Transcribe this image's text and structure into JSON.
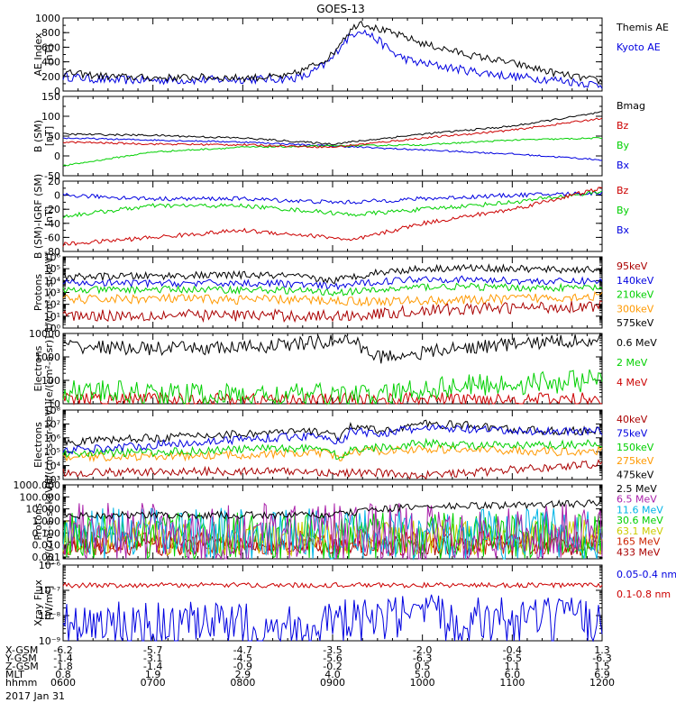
{
  "title": "GOES-13",
  "date_label": "2017 Jan 31",
  "colors": {
    "black": "#000000",
    "blue": "#0000e0",
    "green": "#00d000",
    "red": "#cc0000",
    "orange": "#ff9900",
    "cyan": "#00b4e6",
    "maroon": "#aa0000",
    "purple": "#aa22aa",
    "yellow": "#cccc00"
  },
  "footer": {
    "rows": [
      {
        "label": "X-GSM",
        "values": [
          "-6.2",
          "-5.7",
          "-4.7",
          "-3.5",
          "-2.0",
          "-0.4",
          "1.3"
        ]
      },
      {
        "label": "Y-GSM",
        "values": [
          "-1.4",
          "-3.1",
          "-4.5",
          "-5.6",
          "-6.3",
          "-6.5",
          "-6.3"
        ]
      },
      {
        "label": "Z-GSM",
        "values": [
          "-1.8",
          "-1.4",
          "-0.9",
          "-0.2",
          "0.5",
          "1.1",
          "1.5"
        ]
      },
      {
        "label": "MLT",
        "values": [
          "0.8",
          "1.9",
          "2.9",
          "4.0",
          "5.0",
          "6.0",
          "6.9"
        ]
      },
      {
        "label": "hhmm",
        "values": [
          "0600",
          "0700",
          "0800",
          "0900",
          "1000",
          "1100",
          "1200"
        ]
      }
    ]
  },
  "chart_data": [
    {
      "type": "line",
      "id": "ae",
      "ylabel": [
        "AE Index",
        "[nT]"
      ],
      "scale": "linear",
      "ylim": [
        0,
        1000
      ],
      "ticks": [
        0,
        200,
        400,
        600,
        800,
        1000
      ],
      "tick_labels": [
        "0",
        "200",
        "400",
        "600",
        "800",
        "1000"
      ],
      "minor": 100,
      "x_hours": [
        6,
        6.5,
        7,
        7.5,
        8,
        8.5,
        8.7,
        8.9,
        9.0,
        9.1,
        9.3,
        9.5,
        9.7,
        9.9,
        10,
        10.5,
        11,
        11.5,
        12
      ],
      "series": [
        {
          "name": "Kyoto AE",
          "color": "#0000e0",
          "noise": 0.06,
          "values": [
            200,
            150,
            150,
            150,
            160,
            170,
            200,
            350,
            450,
            650,
            850,
            700,
            500,
            400,
            380,
            280,
            200,
            150,
            80
          ]
        },
        {
          "name": "Themis AE",
          "color": "#000000",
          "noise": 0.05,
          "values": [
            250,
            200,
            180,
            190,
            180,
            200,
            300,
            420,
            500,
            700,
            950,
            850,
            780,
            700,
            650,
            500,
            380,
            240,
            130
          ]
        }
      ]
    },
    {
      "type": "line",
      "id": "b_sm",
      "ylabel": [
        "B (SM)",
        "[nT]"
      ],
      "scale": "linear",
      "ylim": [
        -50,
        150
      ],
      "ticks": [
        -50,
        0,
        50,
        100,
        150
      ],
      "tick_labels": [
        "-50",
        "0",
        "50",
        "100",
        "150"
      ],
      "minor": 25,
      "x_hours": [
        6,
        7,
        8,
        9,
        10,
        11,
        12
      ],
      "series": [
        {
          "name": "Bx",
          "color": "#0000e0",
          "noise": 0.01,
          "values": [
            45,
            40,
            35,
            25,
            15,
            5,
            -10
          ]
        },
        {
          "name": "By",
          "color": "#00d000",
          "noise": 0.01,
          "values": [
            -25,
            10,
            22,
            25,
            28,
            40,
            45
          ]
        },
        {
          "name": "Bz",
          "color": "#cc0000",
          "noise": 0.012,
          "values": [
            35,
            30,
            28,
            22,
            45,
            65,
            95
          ]
        },
        {
          "name": "Bmag",
          "color": "#000000",
          "noise": 0.012,
          "values": [
            55,
            52,
            45,
            30,
            55,
            75,
            110
          ]
        }
      ]
    },
    {
      "type": "line",
      "id": "b_igrf",
      "ylabel": [
        "B (SM)-IGRF (SM)",
        "[nT]"
      ],
      "scale": "linear",
      "ylim": [
        -80,
        20
      ],
      "ticks": [
        -80,
        -60,
        -40,
        -20,
        0,
        20
      ],
      "tick_labels": [
        "-80",
        "-60",
        "-40",
        "-20",
        "0",
        "20"
      ],
      "minor": 10,
      "x_hours": [
        6,
        7,
        8,
        9,
        9.2,
        10,
        11,
        12
      ],
      "series": [
        {
          "name": "Bx",
          "color": "#0000e0",
          "noise": 0.03,
          "values": [
            0,
            -5,
            -5,
            -10,
            -10,
            -5,
            0,
            3
          ]
        },
        {
          "name": "By",
          "color": "#00d000",
          "noise": 0.03,
          "values": [
            -30,
            -15,
            -15,
            -25,
            -28,
            -20,
            -10,
            5
          ]
        },
        {
          "name": "Bz",
          "color": "#cc0000",
          "noise": 0.03,
          "values": [
            -70,
            -60,
            -50,
            -60,
            -65,
            -40,
            -20,
            10
          ]
        }
      ]
    },
    {
      "type": "line",
      "id": "protons_mev",
      "ylabel": [
        "Protons",
        "1/(cm²-s-sr-keV)"
      ],
      "scale": "log",
      "ylim": [
        1.0,
        1000000.0
      ],
      "ticks": [
        1,
        10,
        100,
        1000,
        10000,
        100000,
        1000000
      ],
      "tick_labels": [
        "10⁰",
        "10¹",
        "10²",
        "10³",
        "10⁴",
        "10⁵",
        "10⁶"
      ],
      "minor": "log",
      "x_hours": [
        6,
        7,
        8,
        8.5,
        9,
        9.5,
        10,
        10.5,
        11,
        11.5,
        12
      ],
      "series": [
        {
          "name": "575keV",
          "color": "#000000",
          "noise": 0.03,
          "values": [
            20000,
            25000,
            30000,
            25000,
            10000,
            50000,
            100000,
            120000,
            100000,
            80000,
            90000
          ]
        },
        {
          "name": "300keV",
          "color": "#ff9900",
          "noise": 0.04,
          "values": [
            250,
            300,
            250,
            250,
            200,
            180,
            200,
            220,
            300,
            400,
            500
          ]
        },
        {
          "name": "210keV",
          "color": "#00d000",
          "noise": 0.03,
          "values": [
            1500,
            1800,
            1700,
            1500,
            1000,
            1500,
            3000,
            3000,
            2500,
            2500,
            2500
          ]
        },
        {
          "name": "140keV",
          "color": "#0000e0",
          "noise": 0.03,
          "values": [
            6000,
            6000,
            6000,
            5500,
            3000,
            8000,
            15000,
            12000,
            10000,
            8000,
            10000
          ]
        },
        {
          "name": "95keV",
          "color": "#aa0000",
          "noise": 0.05,
          "values": [
            12,
            12,
            12,
            11,
            10,
            15,
            30,
            40,
            50,
            60,
            80
          ]
        }
      ]
    },
    {
      "type": "line",
      "id": "electrons_mev",
      "ylabel": [
        "Electrons",
        "[e/(cm²-s-sr)]"
      ],
      "scale": "log",
      "ylim": [
        10,
        10000
      ],
      "ticks": [
        10,
        100,
        1000,
        10000
      ],
      "tick_labels": [
        "10",
        "100",
        "1000",
        "10000"
      ],
      "minor": "log",
      "x_hours": [
        6,
        7,
        8,
        8.8,
        9.2,
        9.3,
        9.5,
        10,
        10.5,
        11,
        11.5,
        12
      ],
      "series": [
        {
          "name": "4 MeV",
          "color": "#cc0000",
          "noise": 0.03,
          "values": [
            15,
            15,
            15,
            14,
            15,
            14,
            15,
            15,
            16,
            15,
            15,
            16
          ]
        },
        {
          "name": "2 MeV",
          "color": "#00d000",
          "noise": 0.05,
          "values": [
            35,
            28,
            22,
            24,
            25,
            22,
            20,
            45,
            60,
            70,
            85,
            110
          ]
        },
        {
          "name": "0.6 MeV",
          "color": "#000000",
          "noise": 0.03,
          "values": [
            3000,
            2200,
            2500,
            4000,
            5500,
            3000,
            1000,
            1500,
            2500,
            3500,
            4500,
            6000
          ]
        }
      ]
    },
    {
      "type": "line",
      "id": "electrons_kev",
      "ylabel": [
        "Electrons",
        "[e/(cm²-s-sr-keV)]"
      ],
      "scale": "log",
      "ylim": [
        1000.0,
        100000000.0
      ],
      "ticks": [
        1000,
        10000,
        100000,
        1000000,
        10000000,
        100000000
      ],
      "tick_labels": [
        "10³",
        "10⁴",
        "10⁵",
        "10⁶",
        "10⁷",
        "10⁸"
      ],
      "minor": "log",
      "x_hours": [
        6,
        7,
        8,
        8.9,
        9.1,
        9.2,
        9.5,
        10,
        10.5,
        11,
        11.5,
        12
      ],
      "series": [
        {
          "name": "475keV",
          "color": "#000000",
          "noise": 0.03,
          "values": [
            500000,
            1000000,
            2000000,
            3000000,
            1000000,
            8000000,
            3000000,
            10000000,
            8000000,
            4000000,
            3000000,
            3000000
          ]
        },
        {
          "name": "275keV",
          "color": "#ff9900",
          "noise": 0.03,
          "values": [
            40000,
            45000,
            60000,
            80000,
            30000,
            100000,
            120000,
            150000,
            140000,
            120000,
            100000,
            120000
          ]
        },
        {
          "name": "150keV",
          "color": "#00d000",
          "noise": 0.03,
          "values": [
            80000,
            90000,
            150000,
            200000,
            30000,
            150000,
            200000,
            400000,
            300000,
            250000,
            300000,
            400000
          ]
        },
        {
          "name": "75keV",
          "color": "#0000e0",
          "noise": 0.03,
          "values": [
            120000,
            300000,
            800000,
            1500000,
            400000,
            3000000,
            2000000,
            5000000,
            4000000,
            3000000,
            3000000,
            3000000
          ]
        },
        {
          "name": "40keV",
          "color": "#aa0000",
          "noise": 0.03,
          "values": [
            3000,
            3500,
            4000,
            3500,
            2500,
            3000,
            3000,
            2000,
            3000,
            5000,
            8000,
            15000
          ]
        }
      ]
    },
    {
      "type": "line",
      "id": "protons_hi",
      "ylabel": [
        "Protons",
        "[p/(cm²-s-sr-keV)]"
      ],
      "scale": "log",
      "ylim": [
        0.0007,
        1000
      ],
      "ticks": [
        0.001,
        0.01,
        0.1,
        1,
        10,
        100,
        1000
      ],
      "tick_labels": [
        "0.001",
        "0.010",
        "0.100",
        "1.000",
        "10.000",
        "100.000",
        "1000.000"
      ],
      "minor": "log",
      "x_hours": [
        6,
        7,
        8,
        9,
        9.5,
        10,
        11,
        12
      ],
      "series": [
        {
          "name": "433 MeV",
          "color": "#aa0000",
          "noise": 0.08,
          "values": [
            0.008,
            0.008,
            0.008,
            0.008,
            0.008,
            0.008,
            0.008,
            0.008
          ]
        },
        {
          "name": "165 MeV",
          "color": "#cc2200",
          "noise": 0.1,
          "values": [
            0.015,
            0.015,
            0.015,
            0.015,
            0.015,
            0.015,
            0.015,
            0.015
          ]
        },
        {
          "name": "63.1 MeV",
          "color": "#cccc00",
          "noise": 0.15,
          "values": [
            0.04,
            0.04,
            0.04,
            0.04,
            0.04,
            0.04,
            0.04,
            0.04
          ]
        },
        {
          "name": "30.6 MeV",
          "color": "#00d000",
          "noise": 0.2,
          "values": [
            0.05,
            0.05,
            0.05,
            0.05,
            0.05,
            0.05,
            0.05,
            0.05
          ]
        },
        {
          "name": "11.6 MeV",
          "color": "#00b4e6",
          "noise": 0.22,
          "values": [
            0.08,
            0.08,
            0.08,
            0.08,
            0.08,
            0.08,
            0.08,
            0.08
          ]
        },
        {
          "name": "6.5 MeV",
          "color": "#aa22aa",
          "noise": 0.25,
          "values": [
            0.1,
            0.1,
            0.1,
            0.1,
            0.1,
            0.1,
            0.1,
            0.1
          ]
        },
        {
          "name": "2.5 MeV",
          "color": "#000000",
          "noise": 0.03,
          "values": [
            3,
            3,
            3,
            3,
            10,
            15,
            20,
            30
          ]
        }
      ]
    },
    {
      "type": "line",
      "id": "xray",
      "ylabel": [
        "Xray Flux",
        "[W/m²]"
      ],
      "scale": "log",
      "ylim": [
        1e-09,
        1e-06
      ],
      "ticks": [
        1e-09,
        1e-08,
        1e-07,
        1e-06
      ],
      "tick_labels": [
        "10⁻⁹",
        "10⁻⁸",
        "10⁻⁷",
        "10⁻⁶"
      ],
      "minor": "log",
      "x_hours": [
        6,
        7,
        8,
        9,
        10,
        11,
        12
      ],
      "series": [
        {
          "name": "0.1-0.8 nm",
          "color": "#cc0000",
          "noise": 0.01,
          "values": [
            1.6e-07,
            1.6e-07,
            1.6e-07,
            1.6e-07,
            1.6e-07,
            1.6e-07,
            1.6e-07
          ]
        },
        {
          "name": "0.05-0.4 nm",
          "color": "#0000e0",
          "noise": 0.1,
          "values": [
            4e-09,
            3.5e-09,
            3.5e-09,
            4e-09,
            8e-09,
            6e-09,
            5e-09
          ]
        }
      ]
    }
  ]
}
